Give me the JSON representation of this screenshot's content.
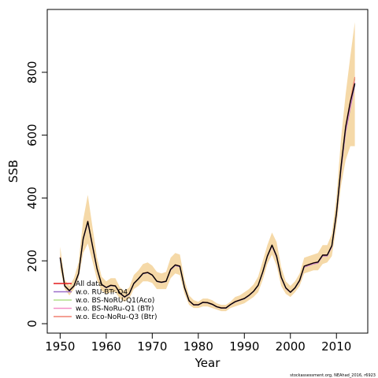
{
  "chart_data": {
    "type": "line",
    "xlabel": "Year",
    "ylabel": "SSB",
    "xlim": [
      1947.2,
      2016.8
    ],
    "ylim": [
      -30,
      1000
    ],
    "x_ticks": [
      1950,
      1960,
      1970,
      1980,
      1990,
      2000,
      2010
    ],
    "y_ticks": [
      0,
      200,
      400,
      600,
      800
    ],
    "x_tick_labels": [
      "1950",
      "1960",
      "1970",
      "1980",
      "1990",
      "2000",
      "2010"
    ],
    "y_tick_labels": [
      "0",
      "200",
      "400",
      "600",
      "800"
    ],
    "grid": false,
    "legend_position": "bottom-left",
    "x": [
      1950,
      1951,
      1952,
      1953,
      1954,
      1955,
      1956,
      1957,
      1958,
      1959,
      1960,
      1961,
      1962,
      1963,
      1964,
      1965,
      1966,
      1967,
      1968,
      1969,
      1970,
      1971,
      1972,
      1973,
      1974,
      1975,
      1976,
      1977,
      1978,
      1979,
      1980,
      1981,
      1982,
      1983,
      1984,
      1985,
      1986,
      1987,
      1988,
      1989,
      1990,
      1991,
      1992,
      1993,
      1994,
      1995,
      1996,
      1997,
      1998,
      1999,
      2000,
      2001,
      2002,
      2003,
      2004,
      2005,
      2006,
      2007,
      2008,
      2009,
      2010,
      2011,
      2012,
      2013,
      2014
    ],
    "band": {
      "name": "confidence interval",
      "color": "#f5d9a8",
      "lower": [
        175,
        110,
        90,
        110,
        145,
        225,
        255,
        200,
        140,
        105,
        95,
        100,
        100,
        80,
        70,
        80,
        110,
        120,
        135,
        135,
        130,
        110,
        110,
        110,
        145,
        160,
        155,
        95,
        60,
        50,
        50,
        55,
        55,
        50,
        45,
        40,
        40,
        50,
        55,
        60,
        65,
        75,
        85,
        100,
        140,
        190,
        220,
        185,
        120,
        95,
        85,
        100,
        120,
        160,
        165,
        170,
        170,
        190,
        195,
        215,
        310,
        440,
        520,
        565,
        565
      ],
      "upper": [
        245,
        140,
        120,
        145,
        195,
        330,
        410,
        310,
        210,
        150,
        135,
        145,
        145,
        115,
        105,
        115,
        155,
        170,
        190,
        195,
        185,
        165,
        160,
        165,
        210,
        225,
        220,
        140,
        90,
        75,
        70,
        80,
        80,
        75,
        65,
        60,
        60,
        70,
        85,
        90,
        100,
        110,
        125,
        150,
        200,
        250,
        290,
        260,
        180,
        135,
        120,
        135,
        160,
        210,
        215,
        220,
        225,
        250,
        250,
        285,
        400,
        590,
        730,
        850,
        960
      ]
    },
    "series": [
      {
        "name": "All data",
        "color": "#e41a1c",
        "values": [
          210,
          120,
          105,
          120,
          160,
          270,
          325,
          250,
          175,
          125,
          115,
          122,
          120,
          97,
          85,
          95,
          128,
          143,
          160,
          163,
          155,
          135,
          132,
          135,
          173,
          187,
          183,
          115,
          73,
          60,
          60,
          68,
          67,
          62,
          54,
          50,
          50,
          61,
          70,
          75,
          80,
          90,
          103,
          122,
          165,
          215,
          250,
          215,
          148,
          114,
          100,
          114,
          138,
          183,
          188,
          193,
          196,
          218,
          218,
          248,
          350,
          500,
          625,
          700,
          780
        ]
      },
      {
        "name": "w.o. RU-BTr-Q4",
        "color": "#9b6fc9",
        "values": [
          208,
          119,
          104,
          119,
          158,
          267,
          322,
          247,
          173,
          124,
          114,
          121,
          119,
          96,
          84,
          94,
          127,
          142,
          159,
          162,
          154,
          134,
          131,
          134,
          171,
          185,
          181,
          114,
          72,
          59,
          59,
          67,
          66,
          61,
          53,
          49,
          49,
          60,
          69,
          74,
          79,
          89,
          102,
          121,
          163,
          213,
          247,
          212,
          146,
          112,
          99,
          113,
          136,
          180,
          185,
          190,
          193,
          215,
          215,
          245,
          345,
          490,
          610,
          685,
          760
        ]
      },
      {
        "name": "w.o. BS-NoRoU-Q1(Aco)",
        "color": "#b2df8a",
        "values": [
          211,
          121,
          106,
          121,
          161,
          271,
          326,
          251,
          176,
          126,
          116,
          123,
          121,
          98,
          86,
          96,
          129,
          144,
          161,
          164,
          156,
          136,
          133,
          136,
          174,
          188,
          184,
          116,
          74,
          61,
          61,
          69,
          68,
          63,
          55,
          51,
          51,
          62,
          71,
          76,
          81,
          91,
          104,
          123,
          166,
          216,
          251,
          216,
          149,
          115,
          101,
          115,
          139,
          184,
          189,
          194,
          197,
          219,
          219,
          249,
          352,
          505,
          630,
          705,
          780
        ]
      },
      {
        "name": "w.o. BS-NoRu-Q1 (BTr)",
        "color": "#f48fc8",
        "values": [
          209,
          120,
          105,
          120,
          159,
          268,
          323,
          248,
          174,
          125,
          115,
          122,
          120,
          97,
          85,
          95,
          128,
          143,
          160,
          163,
          155,
          135,
          132,
          135,
          172,
          186,
          182,
          115,
          73,
          60,
          60,
          68,
          67,
          62,
          54,
          50,
          50,
          61,
          70,
          75,
          80,
          90,
          103,
          122,
          164,
          214,
          248,
          213,
          147,
          113,
          100,
          114,
          137,
          181,
          186,
          191,
          194,
          216,
          216,
          246,
          347,
          495,
          615,
          690,
          770
        ]
      },
      {
        "name": "w.o. Eco-NoRu-Q3 (Btr)",
        "color": "#f08070",
        "values": [
          212,
          121,
          106,
          121,
          161,
          272,
          327,
          252,
          176,
          126,
          116,
          123,
          121,
          98,
          86,
          96,
          129,
          144,
          161,
          164,
          156,
          136,
          133,
          136,
          174,
          188,
          184,
          116,
          74,
          61,
          61,
          69,
          68,
          63,
          55,
          51,
          51,
          62,
          71,
          76,
          81,
          91,
          104,
          123,
          166,
          216,
          251,
          216,
          149,
          115,
          101,
          115,
          139,
          184,
          189,
          194,
          197,
          219,
          219,
          249,
          352,
          505,
          630,
          710,
          785
        ]
      },
      {
        "name": "",
        "color": "#000000",
        "values": [
          210,
          120,
          105,
          120,
          160,
          270,
          325,
          250,
          175,
          125,
          115,
          122,
          120,
          97,
          85,
          95,
          128,
          143,
          160,
          163,
          155,
          135,
          132,
          135,
          173,
          187,
          183,
          115,
          73,
          60,
          60,
          68,
          67,
          62,
          54,
          50,
          50,
          61,
          70,
          75,
          80,
          90,
          103,
          122,
          165,
          215,
          250,
          215,
          148,
          114,
          100,
          114,
          138,
          183,
          188,
          193,
          196,
          218,
          218,
          248,
          350,
          500,
          625,
          705,
          765
        ]
      }
    ],
    "legend": [
      "All data",
      "w.o. RU-BTr-Q4",
      "w.o. BS-NoRU-Q1(Aco)",
      "w.o. BS-NoRu-Q1 (BTr)",
      "w.o. Eco-NoRu-Q3 (Btr)"
    ],
    "footnote": "stockassessment.org, NEAhad_2016, r6923"
  }
}
